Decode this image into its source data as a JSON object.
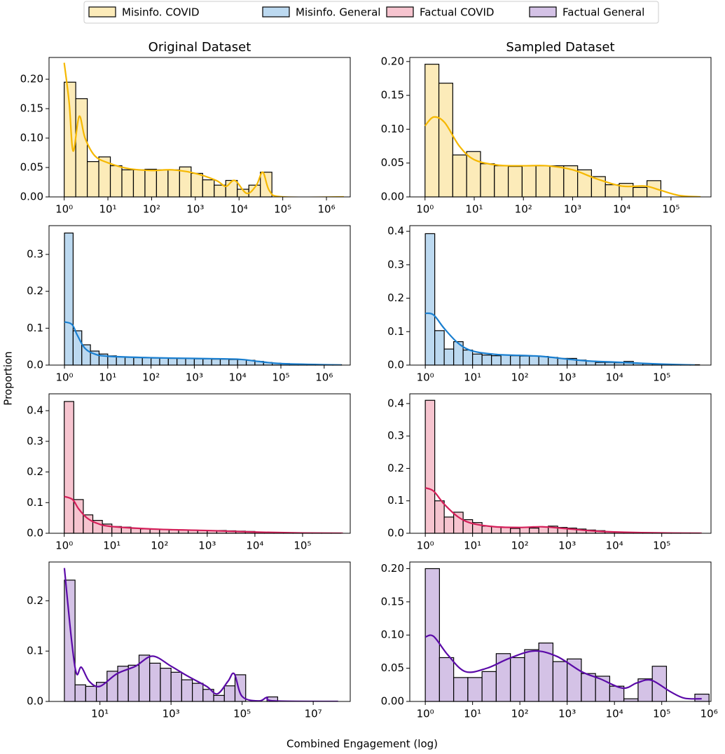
{
  "figure": {
    "xlabel": "Combined Engagement (log)",
    "ylabel": "Proportion",
    "legend": [
      {
        "name": "Misinfo. COVID",
        "color": "#fcebb9"
      },
      {
        "name": "Misinfo. General",
        "color": "#bcd9f0"
      },
      {
        "name": "Factual COVID",
        "color": "#f6c4cf"
      },
      {
        "name": "Factual General",
        "color": "#d4c2e6"
      }
    ]
  },
  "chart_data": [
    {
      "type": "histogram",
      "title": "Original Dataset",
      "log_x": true,
      "color": "#fcebb9",
      "bins": [
        1,
        1.837,
        3.373,
        6.194,
        11.38,
        20.89,
        38.37,
        70.47,
        129.4,
        237.7,
        436.5,
        801.8,
        1472,
        2704,
        4966,
        9120,
        16750,
        30760,
        56490
      ],
      "values": [
        0.195,
        0.167,
        0.06,
        0.068,
        0.053,
        0.046,
        0.046,
        0.047,
        0.046,
        0.046,
        0.051,
        0.04,
        0.029,
        0.02,
        0.028,
        0.013,
        0.02,
        0.042
      ],
      "kde": {
        "color": "#f5b800",
        "x": [
          1,
          1.3,
          1.6,
          2.2,
          3,
          5,
          10,
          30,
          100,
          300,
          1000,
          3000,
          5000,
          8000,
          15000,
          25000,
          35000,
          50000,
          100000,
          2500000
        ],
        "y": [
          0.228,
          0.16,
          0.078,
          0.137,
          0.1,
          0.07,
          0.058,
          0.048,
          0.045,
          0.046,
          0.04,
          0.028,
          0.018,
          0.028,
          0.006,
          0.02,
          0.042,
          0.01,
          0,
          0
        ]
      },
      "xlim": [
        0.45,
        3500000
      ],
      "ylim": [
        0,
        0.237
      ],
      "xticks": [
        {
          "value": 1,
          "label": "10⁰"
        },
        {
          "value": 10,
          "label": "10¹"
        },
        {
          "value": 100,
          "label": "10²"
        },
        {
          "value": 1000,
          "label": "10³"
        },
        {
          "value": 10000,
          "label": "10⁴"
        },
        {
          "value": 100000,
          "label": "10⁵"
        },
        {
          "value": 1000000,
          "label": "10⁶"
        }
      ],
      "yticks": [
        {
          "value": 0,
          "label": "0.00"
        },
        0.05,
        {
          "value": 0.1,
          "label": "0.10"
        },
        0.15,
        {
          "value": 0.2,
          "label": "0.20"
        }
      ]
    },
    {
      "type": "histogram",
      "title": "Sampled Dataset",
      "log_x": true,
      "color": "#fcebb9",
      "bins": [
        1,
        1.914,
        3.664,
        7.015,
        13.43,
        25.7,
        49.2,
        94.19,
        180.3,
        345.1,
        660.7,
        1265,
        2421,
        4634,
        8872,
        16980,
        32510,
        62230
      ],
      "values": [
        0.196,
        0.168,
        0.062,
        0.067,
        0.049,
        0.046,
        0.045,
        0.046,
        0.046,
        0.046,
        0.046,
        0.04,
        0.03,
        0.018,
        0.02,
        0.014,
        0.024
      ],
      "kde": {
        "color": "#f5b800",
        "x": [
          1,
          1.5,
          2.5,
          5,
          10,
          30,
          100,
          300,
          1000,
          3000,
          10000,
          30000,
          60000,
          150000,
          400000
        ],
        "y": [
          0.105,
          0.118,
          0.11,
          0.075,
          0.055,
          0.047,
          0.046,
          0.046,
          0.04,
          0.027,
          0.016,
          0.016,
          0.01,
          0.002,
          0
        ]
      },
      "xlim": [
        0.49,
        650000
      ],
      "ylim": [
        0,
        0.206
      ],
      "xticks": [
        {
          "value": 1,
          "label": "10⁰"
        },
        {
          "value": 10,
          "label": "10¹"
        },
        {
          "value": 100,
          "label": "10²"
        },
        {
          "value": 1000,
          "label": "10³"
        },
        {
          "value": 10000,
          "label": "10⁴"
        },
        {
          "value": 100000,
          "label": "10⁵"
        }
      ],
      "yticks": [
        {
          "value": 0,
          "label": "0.00"
        },
        0.05,
        {
          "value": 0.1,
          "label": "0.10"
        },
        0.15,
        {
          "value": 0.2,
          "label": "0.20"
        }
      ]
    },
    {
      "type": "histogram",
      "log_x": true,
      "color": "#bcd9f0",
      "bins": [
        1,
        1.585,
        2.512,
        3.981,
        6.31,
        10,
        15.85,
        25.12,
        39.81,
        63.1,
        100,
        158.5,
        251.2,
        398.1,
        631,
        1000,
        1585,
        2512,
        3981,
        6310,
        10000,
        15850,
        25120,
        39810,
        63100,
        100000,
        158500,
        251200,
        398100,
        631000,
        1000000,
        1585000,
        2512000
      ],
      "values": [
        0.358,
        0.093,
        0.055,
        0.038,
        0.03,
        0.025,
        0.022,
        0.021,
        0.02,
        0.02,
        0.019,
        0.019,
        0.018,
        0.018,
        0.018,
        0.017,
        0.017,
        0.016,
        0.016,
        0.015,
        0.015,
        0.013,
        0.01,
        0.007,
        0.005,
        0.004,
        0.003,
        0.002,
        0.002,
        0.001,
        0.001,
        0.001
      ],
      "kde": {
        "color": "#1a7fd0",
        "x": [
          1,
          1.5,
          2,
          3,
          5,
          10,
          100,
          1000,
          10000,
          30000,
          100000,
          1000000,
          2500000
        ],
        "y": [
          0.117,
          0.11,
          0.08,
          0.045,
          0.03,
          0.024,
          0.02,
          0.018,
          0.016,
          0.01,
          0.004,
          0.001,
          0
        ]
      },
      "xlim": [
        0.44,
        4000000
      ],
      "ylim": [
        0,
        0.378
      ],
      "xticks": [
        {
          "value": 1,
          "label": "10⁰"
        },
        {
          "value": 10,
          "label": "10¹"
        },
        {
          "value": 100,
          "label": "10²"
        },
        {
          "value": 1000,
          "label": "10³"
        },
        {
          "value": 10000,
          "label": "10⁴"
        },
        {
          "value": 100000,
          "label": "10⁵"
        },
        {
          "value": 1000000,
          "label": "10⁶"
        }
      ],
      "yticks": [
        {
          "value": 0,
          "label": "0.0"
        },
        0.1,
        0.2,
        0.3
      ]
    },
    {
      "type": "histogram",
      "log_x": true,
      "color": "#bcd9f0",
      "bins": [
        1,
        1.585,
        2.512,
        3.981,
        6.31,
        10,
        15.85,
        25.12,
        39.81,
        63.1,
        100,
        158.5,
        251.2,
        398.1,
        631,
        1000,
        1585,
        2512,
        3981,
        6310,
        10000,
        15850,
        25120,
        39810,
        63100,
        100000,
        158500,
        251200,
        398100,
        631000
      ],
      "values": [
        0.393,
        0.103,
        0.048,
        0.07,
        0.045,
        0.033,
        0.03,
        0.028,
        0.03,
        0.028,
        0.027,
        0.027,
        0.026,
        0.023,
        0.02,
        0.02,
        0.015,
        0.012,
        0.008,
        0.008,
        0.007,
        0.011,
        0.006,
        0.004,
        0.003,
        0.002,
        0.001,
        0.001,
        0.001
      ],
      "kde": {
        "color": "#1a7fd0",
        "x": [
          1,
          1.5,
          2.5,
          5,
          10,
          30,
          100,
          300,
          1000,
          3000,
          10000,
          30000,
          100000,
          500000
        ],
        "y": [
          0.155,
          0.15,
          0.11,
          0.065,
          0.042,
          0.032,
          0.029,
          0.026,
          0.018,
          0.012,
          0.009,
          0.006,
          0.003,
          0
        ]
      },
      "xlim": [
        0.47,
        1100000
      ],
      "ylim": [
        0,
        0.417
      ],
      "xticks": [
        {
          "value": 1,
          "label": "10⁰"
        },
        {
          "value": 10,
          "label": "10¹"
        },
        {
          "value": 100,
          "label": "10²"
        },
        {
          "value": 1000,
          "label": "10³"
        },
        {
          "value": 10000,
          "label": "10⁴"
        },
        {
          "value": 100000,
          "label": "10⁵"
        }
      ],
      "yticks": [
        {
          "value": 0,
          "label": "0.0"
        },
        0.1,
        0.2,
        0.3,
        0.4
      ]
    },
    {
      "type": "histogram",
      "log_x": true,
      "color": "#f6c4cf",
      "bins": [
        1,
        1.585,
        2.512,
        3.981,
        6.31,
        10,
        15.85,
        25.12,
        39.81,
        63.1,
        100,
        158.5,
        251.2,
        398.1,
        631,
        1000,
        1585,
        2512,
        3981,
        6310,
        10000,
        15850,
        25120,
        39810,
        63100,
        100000,
        158500,
        251200,
        398100,
        631000
      ],
      "values": [
        0.43,
        0.11,
        0.06,
        0.042,
        0.03,
        0.022,
        0.02,
        0.016,
        0.014,
        0.013,
        0.012,
        0.011,
        0.011,
        0.01,
        0.01,
        0.009,
        0.009,
        0.008,
        0.007,
        0.006,
        0.004,
        0.003,
        0.003,
        0.002,
        0.001,
        0.001,
        0.001,
        0.001,
        0.001
      ],
      "kde": {
        "color": "#d4205a",
        "x": [
          1,
          1.5,
          2,
          3,
          5,
          10,
          100,
          1000,
          10000,
          100000,
          700000
        ],
        "y": [
          0.12,
          0.11,
          0.08,
          0.05,
          0.032,
          0.022,
          0.013,
          0.009,
          0.004,
          0.001,
          0
        ]
      },
      "xlim": [
        0.48,
        1000000
      ],
      "ylim": [
        0,
        0.455
      ],
      "xticks": [
        {
          "value": 1,
          "label": "10⁰"
        },
        {
          "value": 10,
          "label": "10¹"
        },
        {
          "value": 100,
          "label": "10²"
        },
        {
          "value": 1000,
          "label": "10³"
        },
        {
          "value": 10000,
          "label": "10⁴"
        },
        {
          "value": 100000,
          "label": "10⁵"
        }
      ],
      "yticks": [
        {
          "value": 0,
          "label": "0.0"
        },
        0.1,
        0.2,
        0.3,
        0.4
      ]
    },
    {
      "type": "histogram",
      "log_x": true,
      "color": "#f6c4cf",
      "bins": [
        1,
        1.585,
        2.512,
        3.981,
        6.31,
        10,
        15.85,
        25.12,
        39.81,
        63.1,
        100,
        158.5,
        251.2,
        398.1,
        631,
        1000,
        1585,
        2512,
        3981,
        6310,
        10000,
        15850,
        25120,
        39810,
        63100,
        100000,
        158500,
        251200,
        398100,
        631000
      ],
      "values": [
        0.41,
        0.1,
        0.05,
        0.065,
        0.042,
        0.033,
        0.022,
        0.02,
        0.018,
        0.015,
        0.018,
        0.016,
        0.02,
        0.022,
        0.018,
        0.016,
        0.013,
        0.01,
        0.008,
        0.005,
        0.004,
        0.003,
        0.002,
        0.002,
        0.001,
        0.001,
        0.001,
        0.001,
        0.001
      ],
      "kde": {
        "color": "#d4205a",
        "x": [
          1,
          1.5,
          2.5,
          5,
          10,
          30,
          100,
          300,
          1000,
          3000,
          10000,
          100000,
          700000
        ],
        "y": [
          0.14,
          0.13,
          0.09,
          0.05,
          0.03,
          0.02,
          0.018,
          0.02,
          0.014,
          0.008,
          0.004,
          0.001,
          0
        ]
      },
      "xlim": [
        0.47,
        1100000
      ],
      "ylim": [
        0,
        0.43
      ],
      "xticks": [
        {
          "value": 1,
          "label": "10⁰"
        },
        {
          "value": 10,
          "label": "10¹"
        },
        {
          "value": 100,
          "label": "10²"
        },
        {
          "value": 1000,
          "label": "10³"
        },
        {
          "value": 10000,
          "label": "10⁴"
        },
        {
          "value": 100000,
          "label": "10⁵"
        }
      ],
      "yticks": [
        {
          "value": 0,
          "label": "0.0"
        },
        0.1,
        0.2,
        0.3,
        0.4
      ]
    },
    {
      "type": "histogram",
      "log_x": true,
      "color": "#d4c2e6",
      "bins": [
        1,
        1.995,
        3.981,
        7.943,
        15.85,
        31.62,
        63.1,
        125.9,
        251.2,
        501.2,
        1000,
        1995,
        3981,
        7943,
        15850,
        31620,
        63100,
        125900,
        251200,
        501200,
        1000000
      ],
      "values": [
        0.241,
        0.033,
        0.03,
        0.038,
        0.06,
        0.07,
        0.072,
        0.092,
        0.076,
        0.066,
        0.058,
        0.043,
        0.036,
        0.024,
        0.012,
        0.031,
        0.053,
        0,
        0,
        0.009
      ],
      "kde": {
        "color": "#5b0aa8",
        "x": [
          1,
          1.6,
          2.2,
          3,
          5,
          10,
          30,
          100,
          300,
          1000,
          3000,
          10000,
          20000,
          40000,
          60000,
          100000,
          300000,
          500000,
          800000,
          50000000
        ],
        "y": [
          0.265,
          0.12,
          0.055,
          0.068,
          0.04,
          0.03,
          0.055,
          0.07,
          0.09,
          0.07,
          0.05,
          0.03,
          0.015,
          0.04,
          0.055,
          0.01,
          0.001,
          0.008,
          0.001,
          0
        ]
      },
      "xlim": [
        0.37,
        110000000
      ],
      "ylim": [
        0,
        0.277
      ],
      "xticks": [
        {
          "value": 10,
          "label": "10¹"
        },
        {
          "value": 1000,
          "label": "10³"
        },
        {
          "value": 100000,
          "label": "10⁵"
        },
        {
          "value": 10000000,
          "label": "10⁷"
        }
      ],
      "yticks": [
        {
          "value": 0,
          "label": "0.0"
        },
        0.1,
        0.2
      ]
    },
    {
      "type": "histogram",
      "log_x": true,
      "color": "#d4c2e6",
      "bins": [
        1,
        1.995,
        3.981,
        7.943,
        15.85,
        31.62,
        63.1,
        125.9,
        251.2,
        501.2,
        1000,
        1995,
        3981,
        7943,
        15850,
        31620,
        63100,
        125900,
        251200,
        501200,
        1000000
      ],
      "values": [
        0.2,
        0.066,
        0.036,
        0.036,
        0.045,
        0.072,
        0.066,
        0.078,
        0.088,
        0.06,
        0.064,
        0.042,
        0.038,
        0.023,
        0.004,
        0.034,
        0.053,
        0,
        0,
        0.011
      ],
      "kde": {
        "color": "#5b0aa8",
        "x": [
          1,
          1.5,
          3,
          7,
          20,
          60,
          200,
          600,
          2000,
          5000,
          15000,
          30000,
          60000,
          150000,
          300000,
          700000
        ],
        "y": [
          0.097,
          0.098,
          0.07,
          0.045,
          0.05,
          0.065,
          0.076,
          0.068,
          0.045,
          0.034,
          0.02,
          0.028,
          0.032,
          0.015,
          0.005,
          0.004
        ]
      },
      "xlim": [
        0.47,
        1100000
      ],
      "ylim": [
        0,
        0.21
      ],
      "xticks": [
        {
          "value": 1,
          "label": "10⁰"
        },
        {
          "value": 10,
          "label": "10¹"
        },
        {
          "value": 100,
          "label": "10²"
        },
        {
          "value": 1000,
          "label": "10³"
        },
        {
          "value": 10000,
          "label": "10⁴"
        },
        {
          "value": 100000,
          "label": "10⁵"
        },
        {
          "value": 1000000,
          "label": "10⁶"
        }
      ],
      "yticks": [
        {
          "value": 0,
          "label": "0.00"
        },
        0.05,
        {
          "value": 0.1,
          "label": "0.10"
        },
        0.15,
        {
          "value": 0.2,
          "label": "0.20"
        }
      ]
    }
  ]
}
